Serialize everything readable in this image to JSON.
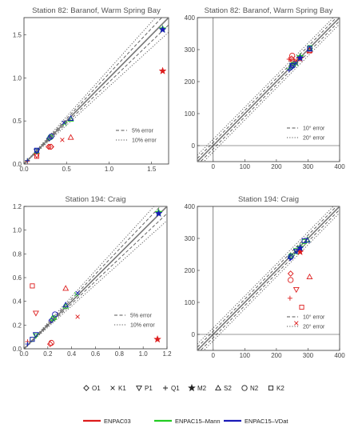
{
  "chart_data": [
    {
      "type": "scatter",
      "title": "Station 82: Baranof, Warm Spring Bay",
      "xlim": [
        0,
        1.7
      ],
      "ylim": [
        0,
        1.7
      ],
      "xticks": [
        "0.0",
        "0.5",
        "1.0",
        "1.5"
      ],
      "yticks": [
        "0.0",
        "0.5",
        "1.0",
        "1.5"
      ],
      "tick_values": [
        0,
        0.5,
        1.0,
        1.5
      ],
      "error_lines": [
        {
          "label": "5% error",
          "style": "dashed"
        },
        {
          "label": "10% error",
          "style": "dotted"
        }
      ],
      "series": [
        {
          "name": "ENPAC03",
          "points": [
            {
              "c": "O1",
              "x": 0.29,
              "y": 0.2
            },
            {
              "c": "O1",
              "x": 0.32,
              "y": 0.2
            },
            {
              "c": "K1",
              "x": 0.45,
              "y": 0.28
            },
            {
              "c": "P1",
              "x": 0.15,
              "y": 0.1
            },
            {
              "c": "Q1",
              "x": 0.04,
              "y": 0.03
            },
            {
              "c": "M2",
              "x": 1.63,
              "y": 1.08
            },
            {
              "c": "S2",
              "x": 0.55,
              "y": 0.31
            },
            {
              "c": "N2",
              "x": 0.31,
              "y": 0.2
            },
            {
              "c": "K2",
              "x": 0.15,
              "y": 0.09
            }
          ]
        },
        {
          "name": "ENPAC15–Mann",
          "points": [
            {
              "c": "O1",
              "x": 0.3,
              "y": 0.3
            },
            {
              "c": "K1",
              "x": 0.48,
              "y": 0.47
            },
            {
              "c": "P1",
              "x": 0.15,
              "y": 0.15
            },
            {
              "c": "Q1",
              "x": 0.04,
              "y": 0.04
            },
            {
              "c": "M2",
              "x": 1.63,
              "y": 1.57
            },
            {
              "c": "S2",
              "x": 0.55,
              "y": 0.52
            },
            {
              "c": "N2",
              "x": 0.31,
              "y": 0.31
            },
            {
              "c": "K2",
              "x": 0.15,
              "y": 0.15
            }
          ]
        },
        {
          "name": "ENPAC15–VDat",
          "points": [
            {
              "c": "O1",
              "x": 0.3,
              "y": 0.3
            },
            {
              "c": "K1",
              "x": 0.47,
              "y": 0.48
            },
            {
              "c": "P1",
              "x": 0.15,
              "y": 0.15
            },
            {
              "c": "Q1",
              "x": 0.04,
              "y": 0.04
            },
            {
              "c": "M2",
              "x": 1.63,
              "y": 1.56
            },
            {
              "c": "S2",
              "x": 0.55,
              "y": 0.53
            },
            {
              "c": "N2",
              "x": 0.32,
              "y": 0.32
            },
            {
              "c": "K2",
              "x": 0.15,
              "y": 0.16
            }
          ]
        }
      ]
    },
    {
      "type": "scatter",
      "title": "Station 82: Baranof, Warm Spring Bay",
      "xlim": [
        -50,
        400
      ],
      "ylim": [
        -50,
        400
      ],
      "xticks": [
        "0",
        "100",
        "200",
        "300",
        "400"
      ],
      "yticks": [
        "0",
        "100",
        "200",
        "300",
        "400"
      ],
      "tick_values": [
        0,
        100,
        200,
        300,
        400
      ],
      "error_lines": [
        {
          "label": "10° error",
          "style": "dashed"
        },
        {
          "label": "20° error",
          "style": "dotted"
        }
      ],
      "series": [
        {
          "name": "ENPAC03",
          "points": [
            {
              "c": "O1",
              "x": 248,
              "y": 272
            },
            {
              "c": "K1",
              "x": 262,
              "y": 266
            },
            {
              "c": "P1",
              "x": 250,
              "y": 262
            },
            {
              "c": "Q1",
              "x": 240,
              "y": 270
            },
            {
              "c": "M2",
              "x": 275,
              "y": 272
            },
            {
              "c": "S2",
              "x": 305,
              "y": 298
            },
            {
              "c": "N2",
              "x": 250,
              "y": 281
            },
            {
              "c": "K2",
              "x": 305,
              "y": 296
            }
          ]
        },
        {
          "name": "ENPAC15–Mann",
          "points": [
            {
              "c": "O1",
              "x": 248,
              "y": 247
            },
            {
              "c": "K1",
              "x": 262,
              "y": 255
            },
            {
              "c": "P1",
              "x": 250,
              "y": 249
            },
            {
              "c": "Q1",
              "x": 240,
              "y": 240
            },
            {
              "c": "M2",
              "x": 275,
              "y": 278
            },
            {
              "c": "S2",
              "x": 305,
              "y": 303
            },
            {
              "c": "N2",
              "x": 251,
              "y": 252
            },
            {
              "c": "K2",
              "x": 306,
              "y": 306
            }
          ]
        },
        {
          "name": "ENPAC15–VDat",
          "points": [
            {
              "c": "O1",
              "x": 248,
              "y": 245
            },
            {
              "c": "K1",
              "x": 262,
              "y": 258
            },
            {
              "c": "P1",
              "x": 250,
              "y": 250
            },
            {
              "c": "Q1",
              "x": 240,
              "y": 236
            },
            {
              "c": "M2",
              "x": 275,
              "y": 274
            },
            {
              "c": "S2",
              "x": 305,
              "y": 302
            },
            {
              "c": "N2",
              "x": 252,
              "y": 250
            },
            {
              "c": "K2",
              "x": 305,
              "y": 304
            }
          ]
        }
      ]
    },
    {
      "type": "scatter",
      "title": "Station 194: Craig",
      "xlim": [
        0,
        1.2
      ],
      "ylim": [
        0,
        1.2
      ],
      "xticks": [
        "0.0",
        "0.2",
        "0.4",
        "0.6",
        "0.8",
        "1.0",
        "1.2"
      ],
      "yticks": [
        "0.0",
        "0.2",
        "0.4",
        "0.6",
        "0.8",
        "1.0",
        "1.2"
      ],
      "tick_values": [
        0,
        0.2,
        0.4,
        0.6,
        0.8,
        1.0,
        1.2
      ],
      "error_lines": [
        {
          "label": "5% error",
          "style": "dashed"
        },
        {
          "label": "10% error",
          "style": "dotted"
        }
      ],
      "series": [
        {
          "name": "ENPAC03",
          "points": [
            {
              "c": "O1",
              "x": 0.22,
              "y": 0.04
            },
            {
              "c": "K1",
              "x": 0.45,
              "y": 0.27
            },
            {
              "c": "P1",
              "x": 0.1,
              "y": 0.3
            },
            {
              "c": "Q1",
              "x": 0.03,
              "y": 0.06
            },
            {
              "c": "M2",
              "x": 1.12,
              "y": 0.08
            },
            {
              "c": "S2",
              "x": 0.35,
              "y": 0.51
            },
            {
              "c": "N2",
              "x": 0.23,
              "y": 0.05
            },
            {
              "c": "K2",
              "x": 0.07,
              "y": 0.53
            }
          ]
        },
        {
          "name": "ENPAC15–Mann",
          "points": [
            {
              "c": "O1",
              "x": 0.24,
              "y": 0.25
            },
            {
              "c": "K1",
              "x": 0.44,
              "y": 0.46
            },
            {
              "c": "P1",
              "x": 0.1,
              "y": 0.11
            },
            {
              "c": "Q1",
              "x": 0.03,
              "y": 0.04
            },
            {
              "c": "M2",
              "x": 1.13,
              "y": 1.15
            },
            {
              "c": "S2",
              "x": 0.35,
              "y": 0.36
            },
            {
              "c": "N2",
              "x": 0.25,
              "y": 0.26
            },
            {
              "c": "K2",
              "x": 0.07,
              "y": 0.08
            }
          ]
        },
        {
          "name": "ENPAC15–VDat",
          "points": [
            {
              "c": "O1",
              "x": 0.23,
              "y": 0.24
            },
            {
              "c": "K1",
              "x": 0.45,
              "y": 0.47
            },
            {
              "c": "P1",
              "x": 0.1,
              "y": 0.12
            },
            {
              "c": "Q1",
              "x": 0.03,
              "y": 0.04
            },
            {
              "c": "M2",
              "x": 1.13,
              "y": 1.14
            },
            {
              "c": "S2",
              "x": 0.35,
              "y": 0.37
            },
            {
              "c": "N2",
              "x": 0.26,
              "y": 0.29
            },
            {
              "c": "K2",
              "x": 0.07,
              "y": 0.08
            }
          ]
        }
      ]
    },
    {
      "type": "scatter",
      "title": "Station 194: Craig",
      "xlim": [
        -50,
        400
      ],
      "ylim": [
        -50,
        400
      ],
      "xticks": [
        "0",
        "100",
        "200",
        "300",
        "400"
      ],
      "yticks": [
        "0",
        "100",
        "200",
        "300",
        "400"
      ],
      "tick_values": [
        0,
        100,
        200,
        300,
        400
      ],
      "error_lines": [
        {
          "label": "10° error",
          "style": "dashed"
        },
        {
          "label": "20° error",
          "style": "dotted"
        }
      ],
      "series": [
        {
          "name": "ENPAC03",
          "points": [
            {
              "c": "O1",
              "x": 245,
              "y": 190
            },
            {
              "c": "K1",
              "x": 263,
              "y": 35
            },
            {
              "c": "P1",
              "x": 263,
              "y": 140
            },
            {
              "c": "Q1",
              "x": 243,
              "y": 113
            },
            {
              "c": "M2",
              "x": 275,
              "y": 258
            },
            {
              "c": "S2",
              "x": 305,
              "y": 180
            },
            {
              "c": "N2",
              "x": 245,
              "y": 170
            },
            {
              "c": "K2",
              "x": 280,
              "y": 85
            }
          ]
        },
        {
          "name": "ENPAC15–Mann",
          "points": [
            {
              "c": "O1",
              "x": 245,
              "y": 242
            },
            {
              "c": "K1",
              "x": 262,
              "y": 255
            },
            {
              "c": "P1",
              "x": 263,
              "y": 262
            },
            {
              "c": "Q1",
              "x": 243,
              "y": 240
            },
            {
              "c": "M2",
              "x": 275,
              "y": 272
            },
            {
              "c": "S2",
              "x": 298,
              "y": 296
            },
            {
              "c": "N2",
              "x": 246,
              "y": 245
            },
            {
              "c": "K2",
              "x": 288,
              "y": 290
            }
          ]
        },
        {
          "name": "ENPAC15–VDat",
          "points": [
            {
              "c": "O1",
              "x": 245,
              "y": 240
            },
            {
              "c": "K1",
              "x": 262,
              "y": 258
            },
            {
              "c": "P1",
              "x": 263,
              "y": 260
            },
            {
              "c": "Q1",
              "x": 243,
              "y": 237
            },
            {
              "c": "M2",
              "x": 275,
              "y": 270
            },
            {
              "c": "S2",
              "x": 298,
              "y": 294
            },
            {
              "c": "N2",
              "x": 246,
              "y": 243
            },
            {
              "c": "K2",
              "x": 288,
              "y": 293
            }
          ]
        }
      ]
    }
  ],
  "marker_legend": [
    {
      "code": "O1",
      "icon": "diamond"
    },
    {
      "code": "K1",
      "icon": "cross"
    },
    {
      "code": "P1",
      "icon": "down-triangle"
    },
    {
      "code": "Q1",
      "icon": "plus"
    },
    {
      "code": "M2",
      "icon": "star"
    },
    {
      "code": "S2",
      "icon": "up-triangle"
    },
    {
      "code": "N2",
      "icon": "circle"
    },
    {
      "code": "K2",
      "icon": "square"
    }
  ],
  "color_legend": [
    {
      "name": "ENPAC03",
      "color": "#dd1c1c"
    },
    {
      "name": "ENPAC15–Mann",
      "color": "#22cc22"
    },
    {
      "name": "ENPAC15–VDat",
      "color": "#1a1ab8"
    }
  ]
}
